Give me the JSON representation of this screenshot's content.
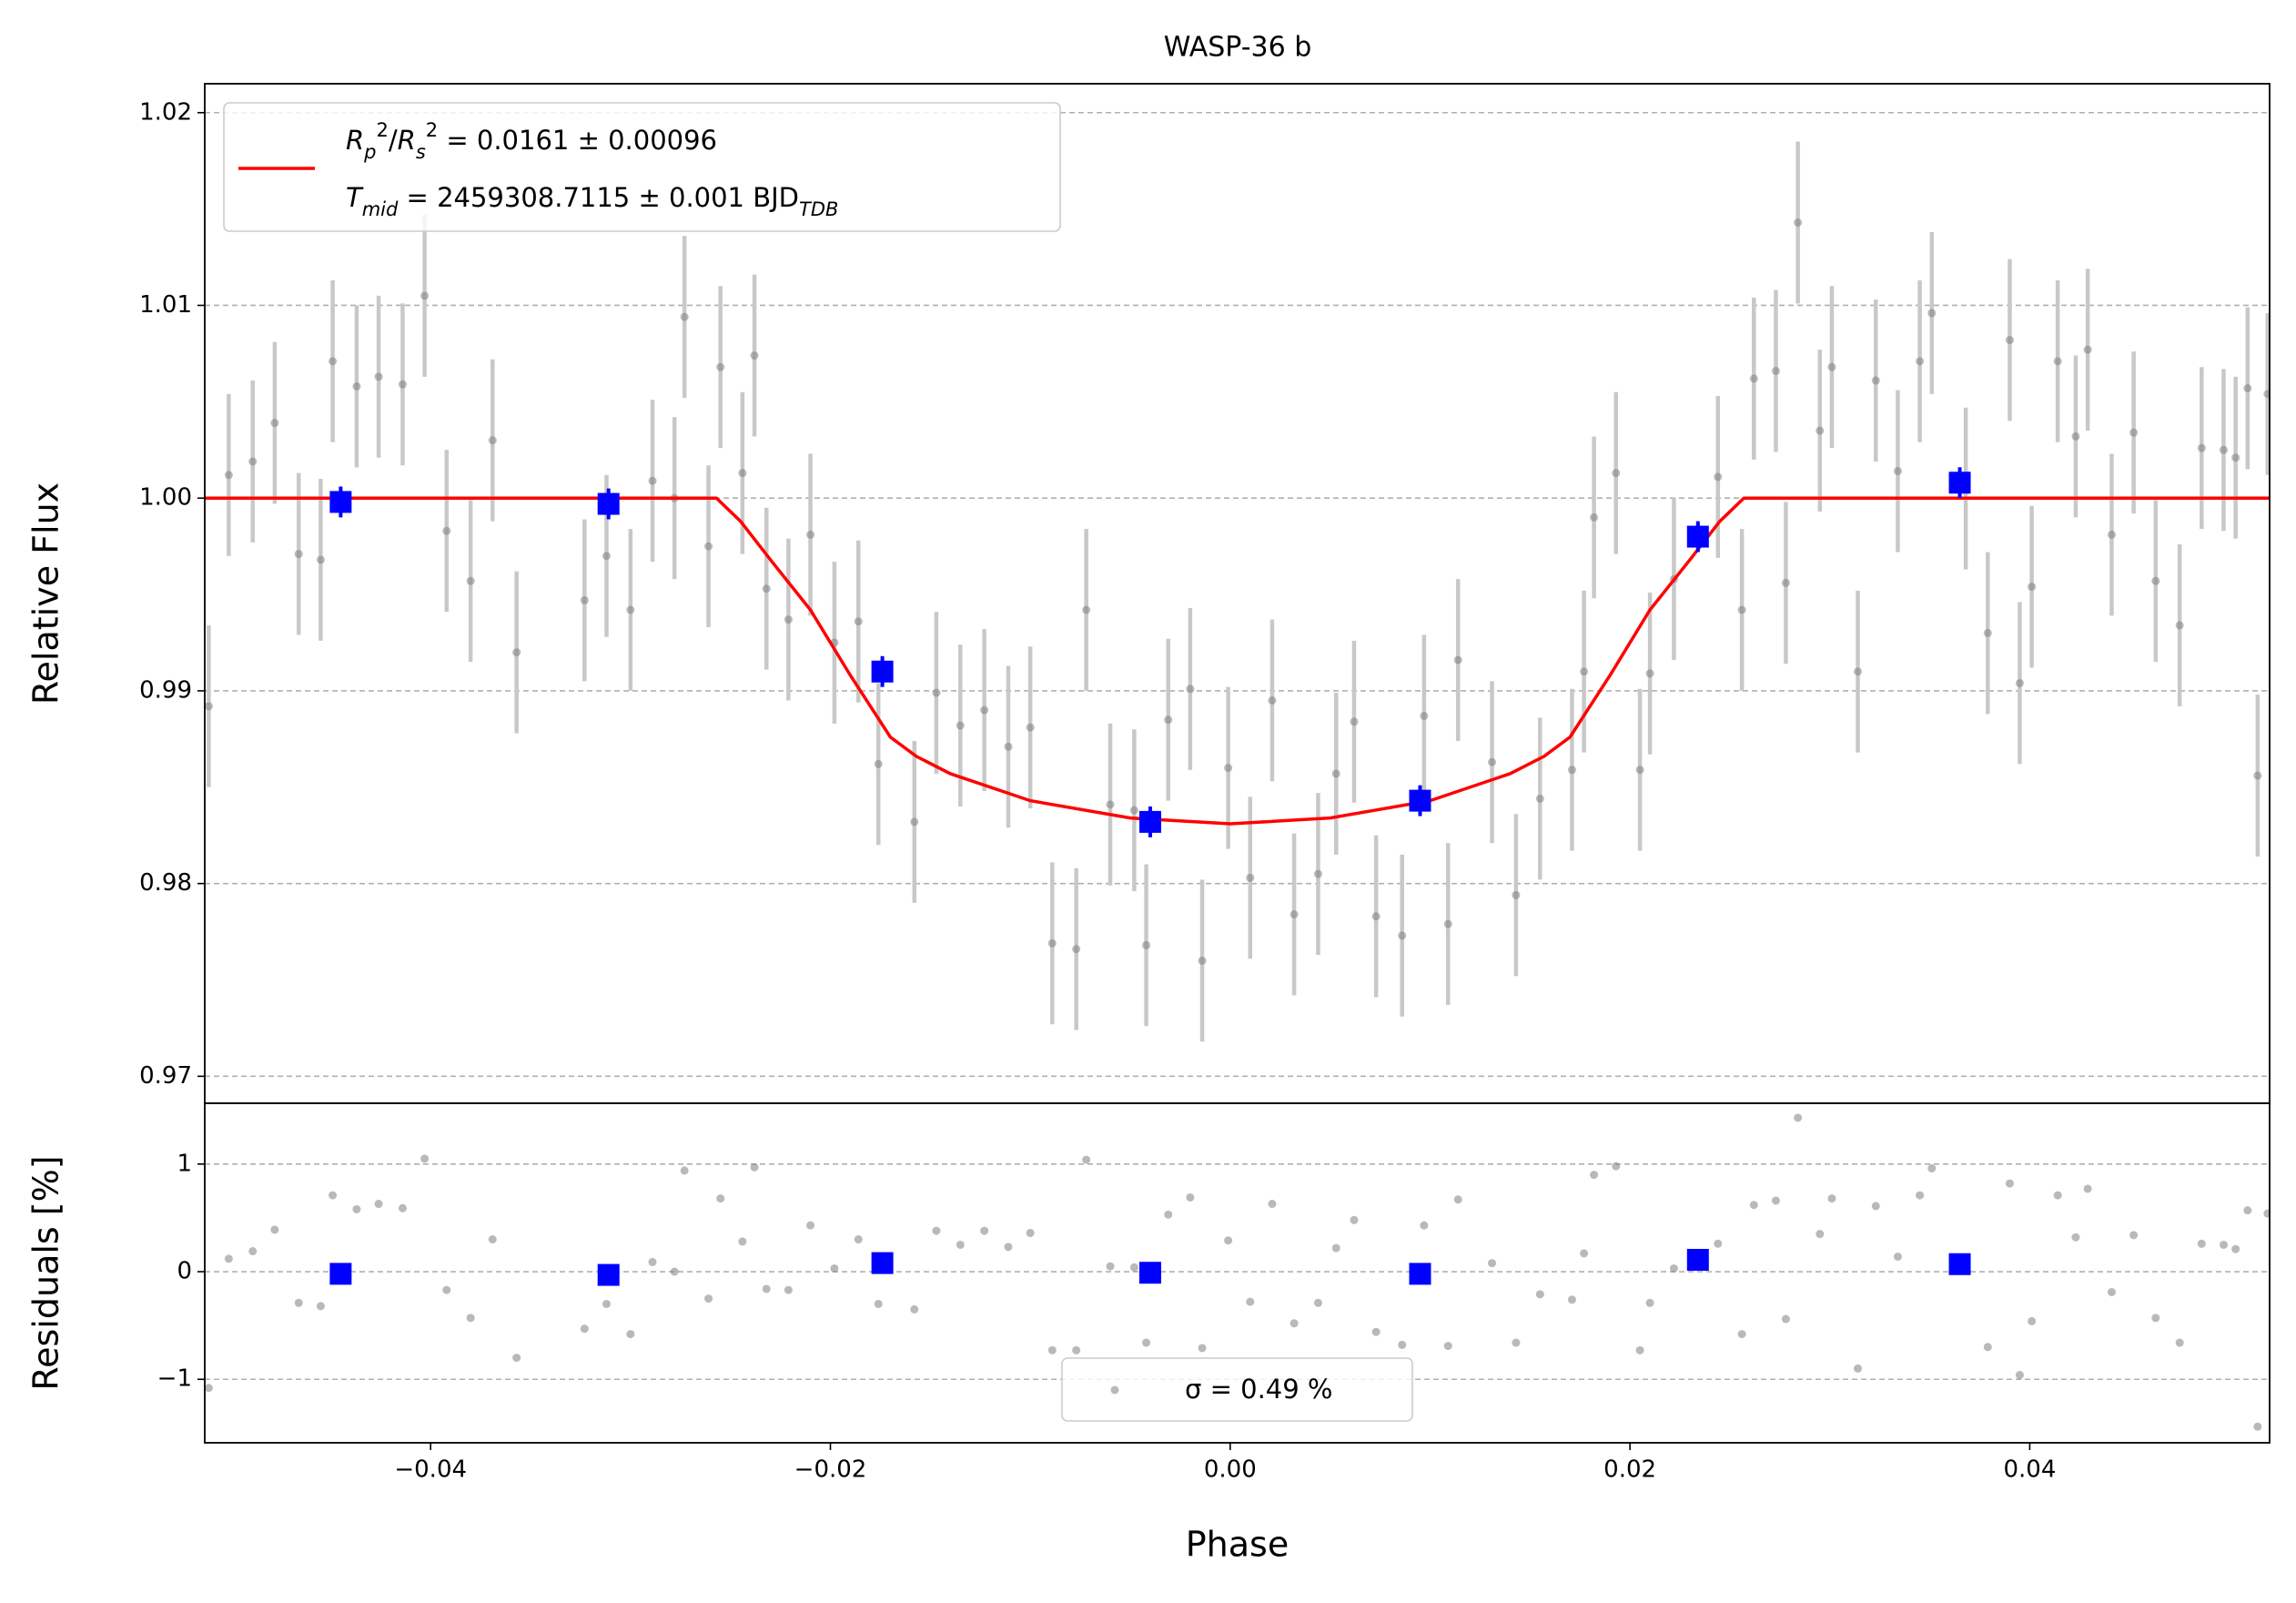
{
  "chart_data": [
    {
      "type": "errorbar",
      "title": "WASP-36 b",
      "ylabel": "Relative Flux",
      "xlim": [
        -0.0513,
        0.052
      ],
      "ylim": [
        0.9686,
        1.0215
      ],
      "grid": true,
      "legend": "upper left",
      "yticks": [
        0.97,
        0.98,
        0.99,
        {
          "value": 1.0,
          "label": "1.00"
        },
        1.01,
        1.02
      ],
      "series": [
        {
          "color": "#808080",
          "errcolor": "#c8c8c8",
          "yerr": 0.0042,
          "x": [
            -0.0511,
            -0.0501,
            -0.0489,
            -0.0478,
            -0.0466,
            -0.0455,
            -0.0449,
            -0.0437,
            -0.0426,
            -0.0414,
            -0.0403,
            -0.0392,
            -0.038,
            -0.0369,
            -0.0357,
            -0.0323,
            -0.0312,
            -0.03,
            -0.0289,
            -0.0278,
            -0.0273,
            -0.0261,
            -0.0255,
            -0.0244,
            -0.0238,
            -0.0232,
            -0.0221,
            -0.021,
            -0.0198,
            -0.0186,
            -0.0176,
            -0.0158,
            -0.0147,
            -0.0135,
            -0.0123,
            -0.0111,
            -0.01,
            -0.0089,
            -0.0077,
            -0.0072,
            -0.006,
            -0.0048,
            -0.0042,
            -0.0031,
            -0.002,
            -0.0014,
            -0.0001,
            0.001,
            0.0021,
            0.0032,
            0.0044,
            0.0053,
            0.0062,
            0.0073,
            0.0086,
            0.0097,
            0.0109,
            0.0114,
            0.0131,
            0.0143,
            0.0155,
            0.0171,
            0.0177,
            0.0182,
            0.0193,
            0.0205,
            0.021,
            0.0222,
            0.0244,
            0.0256,
            0.0262,
            0.0273,
            0.0278,
            0.0284,
            0.0295,
            0.0301,
            0.0314,
            0.0323,
            0.0334,
            0.0345,
            0.0351,
            0.0368,
            0.0379,
            0.039,
            0.0395,
            0.0401,
            0.0414,
            0.0423,
            0.0429,
            0.0441,
            0.0452,
            0.0463,
            0.0475,
            0.0486,
            0.0497,
            0.0503,
            0.0509,
            0.0514,
            0.0519
          ],
          "values": [
            0.9892,
            1.0012,
            1.0019,
            1.0039,
            0.9971,
            0.9968,
            1.0071,
            1.0058,
            1.0063,
            1.0059,
            1.0105,
            0.9983,
            0.9957,
            1.003,
            0.992,
            0.9947,
            0.997,
            0.9942,
            1.0009,
            1.0,
            1.0094,
            0.9975,
            1.0068,
            1.0013,
            1.0074,
            0.9953,
            0.9937,
            0.9981,
            0.9925,
            0.9936,
            0.9862,
            0.9832,
            0.9899,
            0.9882,
            0.989,
            0.9871,
            0.9881,
            0.9769,
            0.9766,
            0.9942,
            0.9841,
            0.9838,
            0.9768,
            0.9885,
            0.9901,
            0.976,
            0.986,
            0.9803,
            0.9895,
            0.9784,
            0.9805,
            0.9857,
            0.9884,
            0.9783,
            0.9773,
            0.9887,
            0.9779,
            0.9916,
            0.9863,
            0.9794,
            0.9844,
            0.9859,
            0.991,
            0.999,
            1.0013,
            0.9859,
            0.9909,
            0.9958,
            1.0011,
            0.9942,
            1.0062,
            1.0066,
            0.9956,
            1.0143,
            1.0035,
            1.0068,
            0.991,
            1.0061,
            1.0014,
            1.0071,
            1.0096,
            1.0005,
            0.993,
            1.0082,
            0.9904,
            0.9954,
            1.0071,
            1.0032,
            1.0077,
            0.9981,
            1.0034,
            0.9957,
            0.9934,
            1.0026,
            1.0025,
            1.0021,
            1.0057,
            0.9856,
            1.0054
          ]
        },
        {
          "type": "line",
          "color": "#ff0000",
          "name": [
            [
              {
                "text": "R",
                "italic": true
              },
              {
                "text": "p",
                "italic": true,
                "shift": "sub"
              },
              {
                "text": "2",
                "shift": "super"
              },
              {
                "text": "/"
              },
              {
                "text": "R",
                "italic": true
              },
              {
                "text": "s",
                "italic": true,
                "shift": "sub"
              },
              {
                "text": "2",
                "shift": "super"
              },
              {
                "text": " = 0.0161 ± 0.00096"
              }
            ],
            [
              {
                "text": "T",
                "italic": true
              },
              {
                "text": "mid",
                "italic": true,
                "shift": "sub"
              },
              {
                "text": " = 2459308.7115 ± 0.001 BJD"
              },
              {
                "text": "TDB",
                "italic": true,
                "shift": "sub"
              }
            ]
          ],
          "x": [
            -0.0513,
            -0.0257,
            -0.0245,
            -0.023,
            -0.021,
            -0.019,
            -0.017,
            -0.0157,
            -0.014,
            -0.01,
            -0.005,
            0.0,
            0.005,
            0.01,
            0.014,
            0.0157,
            0.017,
            0.019,
            0.021,
            0.023,
            0.0245,
            0.0257,
            0.052
          ],
          "values": [
            1.0,
            1.0,
            0.9988,
            0.9968,
            0.9942,
            0.9908,
            0.9876,
            0.9866,
            0.9857,
            0.9843,
            0.9834,
            0.9831,
            0.9834,
            0.9843,
            0.9857,
            0.9866,
            0.9876,
            0.9908,
            0.9942,
            0.9968,
            0.9988,
            1.0,
            1.0
          ]
        },
        {
          "color": "#0000ff",
          "marker": "square",
          "yerr": 0.0008,
          "x": [
            -0.0445,
            -0.0311,
            -0.0174,
            -0.004,
            0.0095,
            0.0234,
            0.0365
          ],
          "values": [
            0.9998,
            0.9997,
            0.991,
            0.9832,
            0.9843,
            0.998,
            1.0008
          ]
        }
      ]
    },
    {
      "type": "scatter",
      "ylabel": "Residuals [%]",
      "xlabel": "Phase",
      "xlim": [
        -0.0513,
        0.052
      ],
      "ylim": [
        -1.59,
        1.565
      ],
      "grid": true,
      "yticks": [
        {
          "value": -1,
          "label": "−1"
        },
        0,
        1
      ],
      "xticks": [
        {
          "value": -0.04,
          "label": "−0.04"
        },
        {
          "value": -0.02,
          "label": "−0.02"
        },
        {
          "value": 0.0,
          "label": "0.00"
        },
        0.02,
        0.04
      ],
      "legend": "lower center",
      "legend_text": "σ = 0.49 %",
      "series": [
        {
          "color": "#808080",
          "x": [
            -0.0511,
            -0.0501,
            -0.0489,
            -0.0478,
            -0.0466,
            -0.0455,
            -0.0449,
            -0.0437,
            -0.0426,
            -0.0414,
            -0.0403,
            -0.0392,
            -0.038,
            -0.0369,
            -0.0357,
            -0.0323,
            -0.0312,
            -0.03,
            -0.0289,
            -0.0278,
            -0.0273,
            -0.0261,
            -0.0255,
            -0.0244,
            -0.0238,
            -0.0232,
            -0.0221,
            -0.021,
            -0.0198,
            -0.0186,
            -0.0176,
            -0.0158,
            -0.0147,
            -0.0135,
            -0.0123,
            -0.0111,
            -0.01,
            -0.0089,
            -0.0077,
            -0.0072,
            -0.006,
            -0.0048,
            -0.0042,
            -0.0031,
            -0.002,
            -0.0014,
            -0.0001,
            0.001,
            0.0021,
            0.0032,
            0.0044,
            0.0053,
            0.0062,
            0.0073,
            0.0086,
            0.0097,
            0.0109,
            0.0114,
            0.0131,
            0.0143,
            0.0155,
            0.0171,
            0.0177,
            0.0182,
            0.0193,
            0.0205,
            0.021,
            0.0222,
            0.0244,
            0.0256,
            0.0262,
            0.0273,
            0.0278,
            0.0284,
            0.0295,
            0.0301,
            0.0314,
            0.0323,
            0.0334,
            0.0345,
            0.0351,
            0.0368,
            0.0379,
            0.039,
            0.0395,
            0.0401,
            0.0414,
            0.0423,
            0.0429,
            0.0441,
            0.0452,
            0.0463,
            0.0475,
            0.0486,
            0.0497,
            0.0503,
            0.0509,
            0.0514,
            0.0519
          ],
          "values": [
            -1.08,
            0.12,
            0.19,
            0.39,
            -0.29,
            -0.32,
            0.71,
            0.58,
            0.63,
            0.59,
            1.05,
            -0.17,
            -0.43,
            0.3,
            -0.8,
            -0.53,
            -0.3,
            -0.58,
            0.09,
            0.0,
            0.94,
            -0.25,
            0.68,
            0.28,
            0.97,
            -0.16,
            -0.17,
            0.43,
            0.03,
            0.3,
            -0.3,
            -0.35,
            0.38,
            0.25,
            0.38,
            0.23,
            0.36,
            -0.73,
            -0.73,
            1.04,
            0.05,
            0.04,
            -0.66,
            0.53,
            0.69,
            -0.71,
            0.29,
            -0.28,
            0.63,
            -0.48,
            -0.29,
            0.22,
            0.48,
            -0.56,
            -0.68,
            0.43,
            -0.69,
            0.67,
            0.08,
            -0.66,
            -0.21,
            -0.26,
            0.17,
            0.9,
            0.98,
            -0.73,
            -0.29,
            0.03,
            0.26,
            -0.58,
            0.62,
            0.66,
            -0.44,
            1.43,
            0.35,
            0.68,
            -0.9,
            0.61,
            0.14,
            0.71,
            0.96,
            0.05,
            -0.7,
            0.82,
            -0.96,
            -0.46,
            0.71,
            0.32,
            0.77,
            -0.19,
            0.34,
            -0.43,
            -0.66,
            0.26,
            0.25,
            0.21,
            0.57,
            -1.44,
            0.54
          ]
        },
        {
          "color": "#0000ff",
          "marker": "square",
          "x": [
            -0.0445,
            -0.0311,
            -0.0174,
            -0.004,
            0.0095,
            0.0234,
            0.0365
          ],
          "values": [
            -0.02,
            -0.03,
            0.08,
            -0.01,
            -0.02,
            0.11,
            0.07
          ]
        }
      ]
    }
  ]
}
